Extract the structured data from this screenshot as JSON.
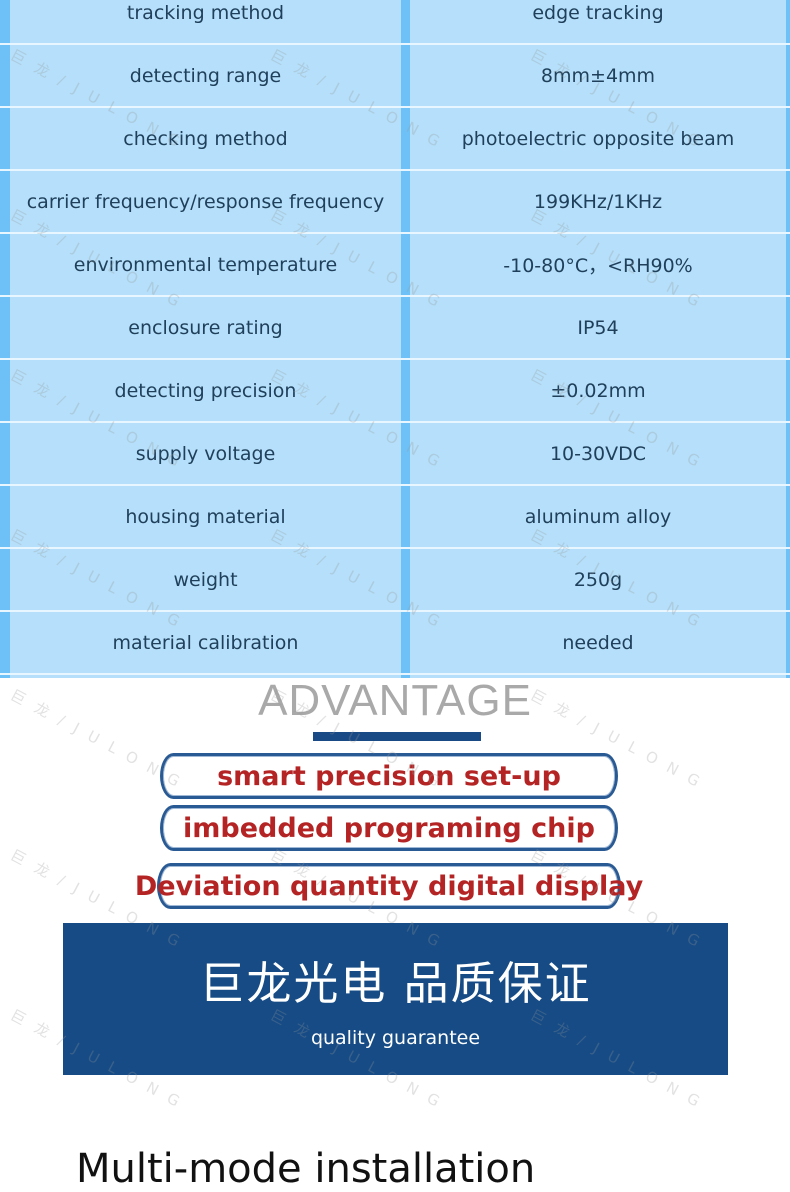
{
  "spec_rows": [
    {
      "label": "tracking method",
      "value": "edge tracking"
    },
    {
      "label": "detecting range",
      "value": "8mm±4mm"
    },
    {
      "label": "checking method",
      "value": "photoelectric opposite beam"
    },
    {
      "label": "carrier frequency/response frequency",
      "value": "199KHz/1KHz"
    },
    {
      "label": "environmental temperature",
      "value": "-10-80°C，<RH90%"
    },
    {
      "label": "enclosure rating",
      "value": "IP54"
    },
    {
      "label": "detecting precision",
      "value": "±0.02mm"
    },
    {
      "label": "supply voltage",
      "value": "10-30VDC"
    },
    {
      "label": "housing material",
      "value": "aluminum alloy"
    },
    {
      "label": "weight",
      "value": "250g"
    },
    {
      "label": "material calibration",
      "value": "needed"
    }
  ],
  "advantage": {
    "title": "ADVANTAGE",
    "items": [
      "smart precision set-up",
      "imbedded programing chip",
      "Deviation quantity digital display"
    ]
  },
  "banner": {
    "title_cn": "巨龙光电 品质保证",
    "subtitle": "quality guarantee"
  },
  "bottom_heading": "Multi-mode installation",
  "watermark": "巨龙/JULONG",
  "colors": {
    "table_bg": "#b5dffa",
    "stripe": "#6ec1f6",
    "banner": "#164b85",
    "accent_red": "#b52424"
  }
}
